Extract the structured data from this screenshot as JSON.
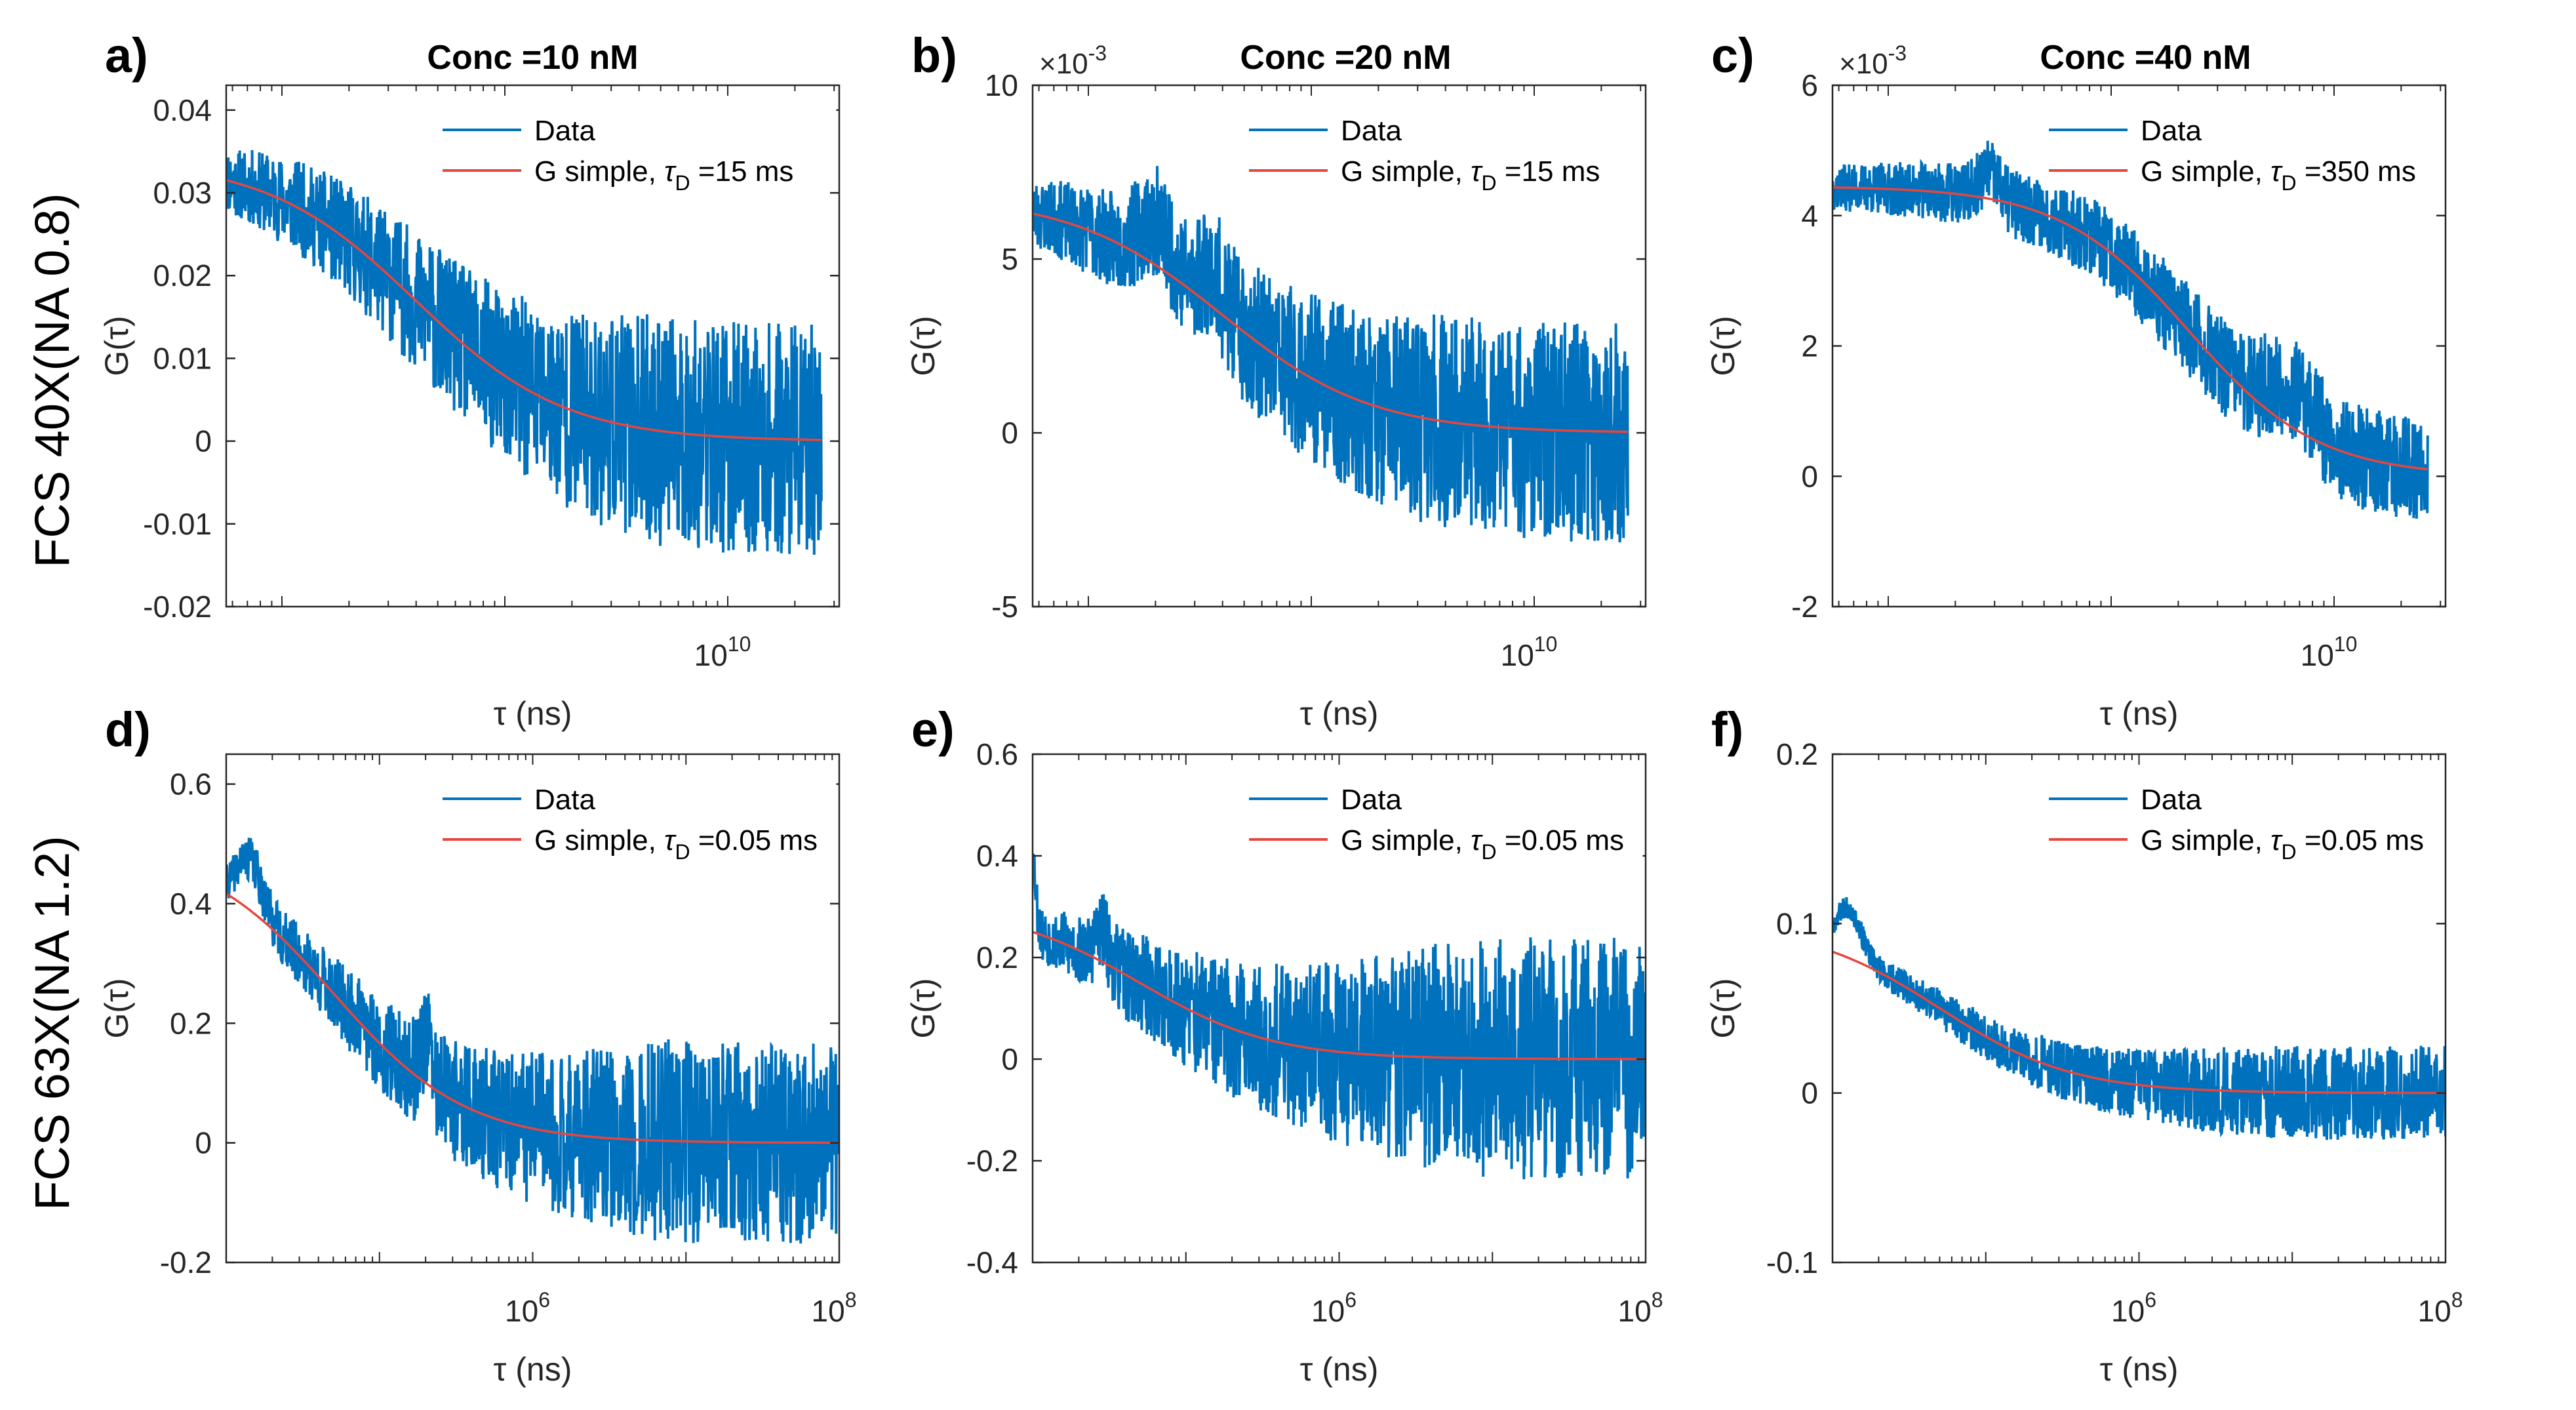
{
  "row_labels": [
    "FCS 40X(NA 0.8)",
    "FCS 63X(NA 1.2)"
  ],
  "colors": {
    "data": "#0072BD",
    "fit": "#E8453C",
    "axis": "#262626",
    "background": "#FFFFFF"
  },
  "chart_data": [
    {
      "panel": "a)",
      "type": "line",
      "title": "Conc =10 nM",
      "xlabel": "τ (ns)",
      "ylabel": "G(τ)",
      "xscale": "log",
      "xlim_log10": [
        7.75,
        10.5
      ],
      "ylim": [
        -0.02,
        0.043
      ],
      "xticks": [
        {
          "label": "10",
          "exp": "10",
          "log": 10
        }
      ],
      "yticks": [
        {
          "label": "-0.02",
          "v": -0.02
        },
        {
          "label": "-0.01",
          "v": -0.01
        },
        {
          "label": "0",
          "v": 0
        },
        {
          "label": "0.01",
          "v": 0.01
        },
        {
          "label": "0.02",
          "v": 0.02
        },
        {
          "label": "0.03",
          "v": 0.03
        },
        {
          "label": "0.04",
          "v": 0.04
        }
      ],
      "exponent_label": "",
      "legend": {
        "data": "Data",
        "fit_prefix": "G simple, ",
        "fit_tau": "τ",
        "fit_sub": "D",
        "fit_value": " =15 ms"
      },
      "fit": {
        "g0": 0.034,
        "x_end_log10": 10.42,
        "log_tau_d": 8.6,
        "steep": 1.3
      },
      "noise": {
        "seed": 11,
        "amp_start": 0.004,
        "amp_end": 0.014,
        "data_end_log10": 10.42,
        "bumps": []
      }
    },
    {
      "panel": "b)",
      "type": "line",
      "title": "Conc =20 nM",
      "xlabel": "τ (ns)",
      "ylabel": "G(τ)",
      "xscale": "log",
      "xlim_log10": [
        7.75,
        10.5
      ],
      "ylim": [
        -5,
        10
      ],
      "xticks": [
        {
          "label": "10",
          "exp": "10",
          "log": 10
        }
      ],
      "yticks": [
        {
          "label": "-5",
          "v": -5
        },
        {
          "label": "0",
          "v": 0
        },
        {
          "label": "5",
          "v": 5
        },
        {
          "label": "10",
          "v": 10
        }
      ],
      "exponent_label": "×10",
      "exponent_power": "-3",
      "legend": {
        "data": "Data",
        "fit_prefix": "G simple, ",
        "fit_tau": "τ",
        "fit_sub": "D",
        "fit_value": " =15 ms"
      },
      "fit": {
        "g0": 6.8,
        "x_end_log10": 10.42,
        "log_tau_d": 8.6,
        "steep": 1.3
      },
      "noise": {
        "seed": 23,
        "amp_start": 1.0,
        "amp_end": 3.2,
        "data_end_log10": 10.42,
        "bumps": [
          [
            8.3,
            2.5,
            0.1
          ],
          [
            8.55,
            2.0,
            0.08
          ]
        ]
      }
    },
    {
      "panel": "c)",
      "type": "line",
      "title": "Conc =40 nM",
      "xlabel": "τ (ns)",
      "ylabel": "G(τ)",
      "xscale": "log",
      "xlim_log10": [
        7.75,
        10.5
      ],
      "ylim": [
        -2,
        6
      ],
      "xticks": [
        {
          "label": "10",
          "exp": "10",
          "log": 10
        }
      ],
      "yticks": [
        {
          "label": "-2",
          "v": -2
        },
        {
          "label": "0",
          "v": 0
        },
        {
          "label": "2",
          "v": 2
        },
        {
          "label": "4",
          "v": 4
        },
        {
          "label": "6",
          "v": 6
        }
      ],
      "exponent_label": "×10",
      "exponent_power": "-3",
      "legend": {
        "data": "Data",
        "fit_prefix": "G simple, ",
        "fit_tau": "τ",
        "fit_sub": "D",
        "fit_value": " =350 ms"
      },
      "fit": {
        "g0": 4.45,
        "x_end_log10": 10.42,
        "log_tau_d": 9.35,
        "steep": 1.5
      },
      "noise": {
        "seed": 37,
        "amp_start": 0.35,
        "amp_end": 0.8,
        "data_end_log10": 10.42,
        "bumps": [
          [
            8.45,
            0.8,
            0.06
          ],
          [
            9.8,
            1.2,
            0.15
          ]
        ]
      }
    },
    {
      "panel": "d)",
      "type": "line",
      "title": "",
      "xlabel": "τ (ns)",
      "ylabel": "G(τ)",
      "xscale": "log",
      "xlim_log10": [
        4.0,
        8.0
      ],
      "ylim": [
        -0.2,
        0.65
      ],
      "xticks": [
        {
          "label": "10",
          "exp": "6",
          "log": 6
        },
        {
          "label": "10",
          "exp": "8",
          "log": 8
        }
      ],
      "yticks": [
        {
          "label": "-0.2",
          "v": -0.2
        },
        {
          "label": "0",
          "v": 0
        },
        {
          "label": "0.2",
          "v": 0.2
        },
        {
          "label": "0.4",
          "v": 0.4
        },
        {
          "label": "0.6",
          "v": 0.6
        }
      ],
      "exponent_label": "",
      "legend": {
        "data": "Data",
        "fit_prefix": "G simple, ",
        "fit_tau": "τ",
        "fit_sub": "D",
        "fit_value": " =0.05 ms"
      },
      "fit": {
        "g0": 0.5,
        "x_end_log10": 8.0,
        "log_tau_d": 4.7,
        "steep": 1.0
      },
      "noise": {
        "seed": 41,
        "amp_start": 0.03,
        "amp_end": 0.17,
        "data_end_log10": 8.0,
        "bumps": [
          [
            4.15,
            0.17,
            0.12
          ],
          [
            5.3,
            0.15,
            0.05
          ]
        ]
      }
    },
    {
      "panel": "e)",
      "type": "line",
      "title": "",
      "xlabel": "τ (ns)",
      "ylabel": "G(τ)",
      "xscale": "log",
      "xlim_log10": [
        4.0,
        8.0
      ],
      "ylim": [
        -0.4,
        0.6
      ],
      "xticks": [
        {
          "label": "10",
          "exp": "6",
          "log": 6
        },
        {
          "label": "10",
          "exp": "8",
          "log": 8
        }
      ],
      "yticks": [
        {
          "label": "-0.4",
          "v": -0.4
        },
        {
          "label": "-0.2",
          "v": -0.2
        },
        {
          "label": "0",
          "v": 0
        },
        {
          "label": "0.2",
          "v": 0.2
        },
        {
          "label": "0.4",
          "v": 0.4
        },
        {
          "label": "0.6",
          "v": 0.6
        }
      ],
      "exponent_label": "",
      "legend": {
        "data": "Data",
        "fit_prefix": "G simple, ",
        "fit_tau": "τ",
        "fit_sub": "D",
        "fit_value": " =0.05 ms"
      },
      "fit": {
        "g0": 0.3,
        "x_end_log10": 8.0,
        "log_tau_d": 4.7,
        "steep": 1.0
      },
      "noise": {
        "seed": 53,
        "amp_start": 0.05,
        "amp_end": 0.24,
        "data_end_log10": 8.0,
        "bumps": [
          [
            4.0,
            0.3,
            0.03
          ],
          [
            4.45,
            0.12,
            0.06
          ]
        ]
      }
    },
    {
      "panel": "f)",
      "type": "line",
      "title": "",
      "xlabel": "τ (ns)",
      "ylabel": "G(τ)",
      "xscale": "log",
      "xlim_log10": [
        4.0,
        8.0
      ],
      "ylim": [
        -0.1,
        0.2
      ],
      "xticks": [
        {
          "label": "10",
          "exp": "6",
          "log": 6
        },
        {
          "label": "10",
          "exp": "8",
          "log": 8
        }
      ],
      "yticks": [
        {
          "label": "-0.1",
          "v": -0.1
        },
        {
          "label": "0",
          "v": 0
        },
        {
          "label": "0.1",
          "v": 0.1
        },
        {
          "label": "0.2",
          "v": 0.2
        }
      ],
      "exponent_label": "",
      "legend": {
        "data": "Data",
        "fit_prefix": "G simple, ",
        "fit_tau": "τ",
        "fit_sub": "D",
        "fit_value": " =0.05 ms"
      },
      "fit": {
        "g0": 0.1,
        "x_end_log10": 8.0,
        "log_tau_d": 4.7,
        "steep": 1.0
      },
      "noise": {
        "seed": 67,
        "amp_start": 0.006,
        "amp_end": 0.028,
        "data_end_log10": 8.0,
        "bumps": [
          [
            4.1,
            0.06,
            0.12
          ]
        ]
      }
    }
  ]
}
